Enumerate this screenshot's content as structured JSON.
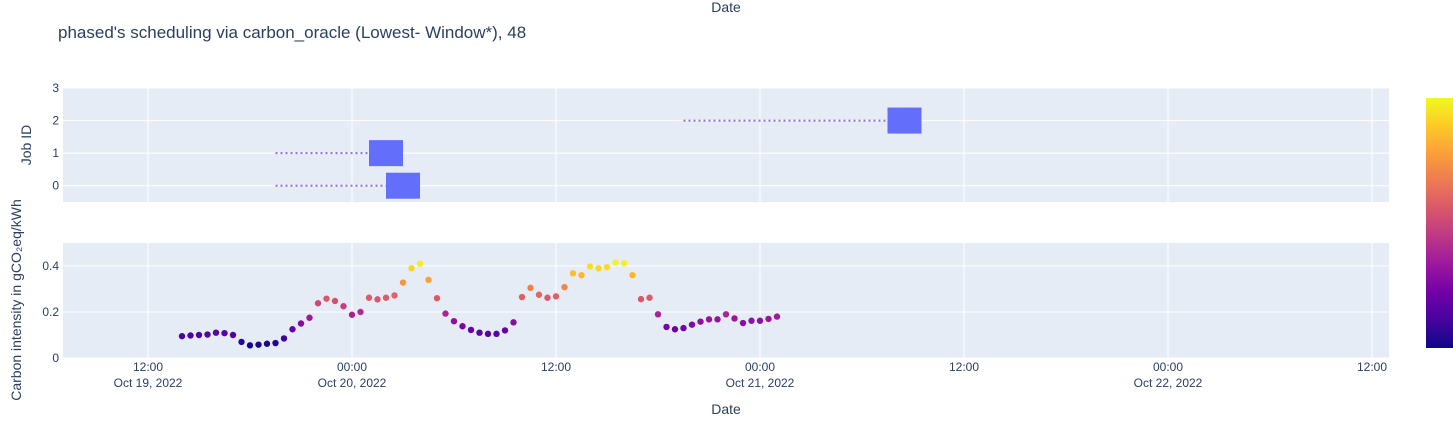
{
  "title": "phased's scheduling via carbon_oracle (Lowest- Window*), 48",
  "top_xlabel": "Date",
  "chart_data": [
    {
      "type": "gantt",
      "ylabel": "Job ID",
      "ylim": [
        -0.5,
        3
      ],
      "yticks": [
        0,
        1,
        2,
        3
      ],
      "x_range": [
        "2022-10-19T07:00",
        "2022-10-22T13:00"
      ],
      "jobs": [
        {
          "id": 0,
          "wait_start": "2022-10-19T19:30",
          "start": "2022-10-20T02:00",
          "end": "2022-10-20T04:00"
        },
        {
          "id": 1,
          "wait_start": "2022-10-19T19:30",
          "start": "2022-10-20T01:00",
          "end": "2022-10-20T03:00"
        },
        {
          "id": 2,
          "wait_start": "2022-10-20T19:30",
          "start": "2022-10-21T07:30",
          "end": "2022-10-21T09:30"
        }
      ],
      "bar_color": "#636efa",
      "wait_line_color": "#8e6fe0"
    },
    {
      "type": "scatter",
      "xlabel": "Date",
      "ylabel": "Carbon intensity in gCO₂eq/kWh",
      "ylim": [
        0,
        0.5
      ],
      "yticks": [
        0,
        0.2,
        0.4
      ],
      "x_range": [
        "2022-10-19T07:00",
        "2022-10-22T13:00"
      ],
      "xticks": [
        {
          "t": "2022-10-19T12:00",
          "time": "12:00",
          "date": "Oct 19, 2022"
        },
        {
          "t": "2022-10-20T00:00",
          "time": "00:00",
          "date": "Oct 20, 2022"
        },
        {
          "t": "2022-10-20T12:00",
          "time": "12:00",
          "date": ""
        },
        {
          "t": "2022-10-21T00:00",
          "time": "00:00",
          "date": "Oct 21, 2022"
        },
        {
          "t": "2022-10-21T12:00",
          "time": "12:00",
          "date": ""
        },
        {
          "t": "2022-10-22T00:00",
          "time": "00:00",
          "date": "Oct 22, 2022"
        },
        {
          "t": "2022-10-22T12:00",
          "time": "12:00",
          "date": ""
        }
      ],
      "x_start": "2022-10-19T14:00",
      "x_step_hours": 0.5,
      "values": [
        0.095,
        0.098,
        0.1,
        0.102,
        0.11,
        0.108,
        0.1,
        0.07,
        0.055,
        0.058,
        0.062,
        0.065,
        0.085,
        0.125,
        0.15,
        0.175,
        0.238,
        0.258,
        0.248,
        0.225,
        0.188,
        0.2,
        0.262,
        0.255,
        0.262,
        0.272,
        0.328,
        0.39,
        0.41,
        0.34,
        0.26,
        0.193,
        0.16,
        0.138,
        0.122,
        0.11,
        0.105,
        0.105,
        0.12,
        0.155,
        0.265,
        0.305,
        0.275,
        0.262,
        0.268,
        0.308,
        0.368,
        0.36,
        0.398,
        0.39,
        0.395,
        0.415,
        0.412,
        0.36,
        0.256,
        0.262,
        0.19,
        0.135,
        0.125,
        0.13,
        0.145,
        0.158,
        0.168,
        0.168,
        0.19,
        0.172,
        0.152,
        0.162,
        0.162,
        0.17,
        0.18
      ],
      "colorscale": [
        "#0d0887",
        "#46039f",
        "#7201a8",
        "#9c179e",
        "#bd3786",
        "#d8576b",
        "#ed7953",
        "#fb9f3a",
        "#fdca26",
        "#f0f921"
      ],
      "color_range": [
        0.05,
        0.42
      ]
    }
  ]
}
